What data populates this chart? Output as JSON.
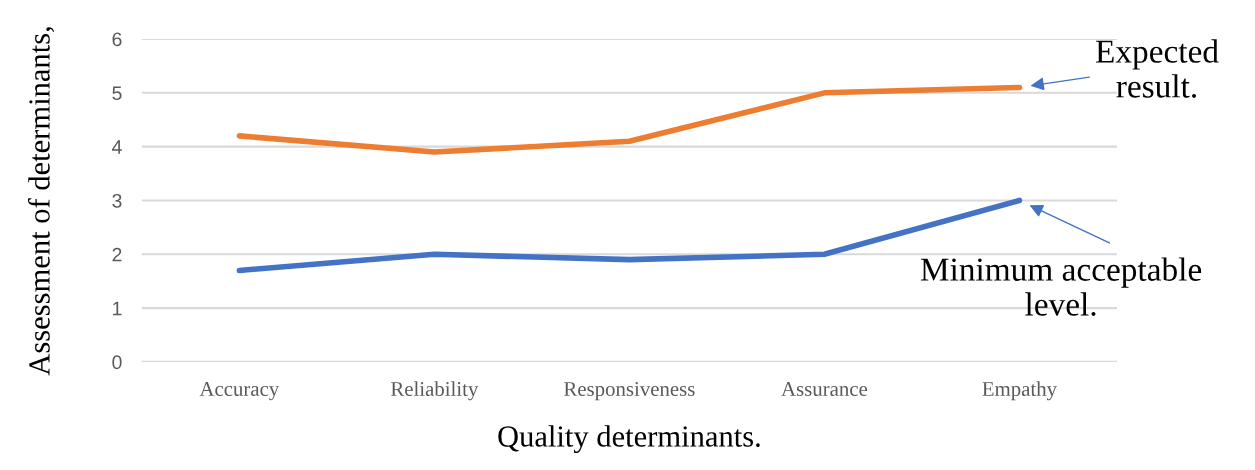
{
  "chart_data": {
    "type": "line",
    "xlabel": "Quality determinants.",
    "ylabel": "Assessment of determinants,",
    "categories": [
      "Accuracy",
      "Reliability",
      "Responsiveness",
      "Assurance",
      "Empathy"
    ],
    "series": [
      {
        "color": "#ed7d31",
        "values": [
          4.2,
          3.9,
          4.1,
          5.0,
          5.1
        ]
      },
      {
        "color": "#4472c4",
        "values": [
          1.7,
          2.0,
          1.9,
          2.0,
          3.0
        ]
      }
    ],
    "annotations": [
      "Expected result.",
      "Minimum acceptable level."
    ],
    "ylim": [
      0,
      6
    ],
    "yticks": [
      0,
      1,
      2,
      3,
      4,
      5,
      6
    ],
    "grid": "y",
    "legend": false,
    "marker": "none",
    "line_style": "solid"
  }
}
